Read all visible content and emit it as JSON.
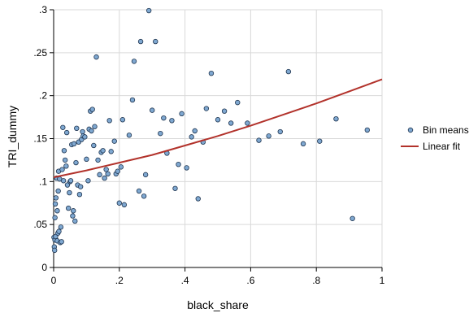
{
  "chart_data": {
    "type": "scatter",
    "xlabel": "black_share",
    "ylabel": "TRI_dummy",
    "xlim": [
      0,
      1
    ],
    "ylim": [
      0,
      0.3
    ],
    "x_ticks": [
      0,
      0.2,
      0.4,
      0.6,
      0.8,
      1
    ],
    "x_tick_labels": [
      "0",
      ".2",
      ".4",
      ".6",
      ".8",
      "1"
    ],
    "y_ticks": [
      0,
      0.05,
      0.1,
      0.15,
      0.2,
      0.25,
      0.3
    ],
    "y_tick_labels": [
      "0",
      ".05",
      ".1",
      ".15",
      ".2",
      ".25",
      ".3"
    ],
    "grid": true,
    "legend_position": "right",
    "colors": {
      "points": "#7fa8d1",
      "point_edge": "#1f3550",
      "fit": "#b2322b",
      "grid": "#d9d9d9"
    },
    "series": [
      {
        "name": "Bin means",
        "kind": "scatter",
        "points": [
          [
            0.001,
            0.035
          ],
          [
            0.002,
            0.024
          ],
          [
            0.003,
            0.02
          ],
          [
            0.004,
            0.032
          ],
          [
            0.004,
            0.058
          ],
          [
            0.005,
            0.074
          ],
          [
            0.006,
            0.036
          ],
          [
            0.007,
            0.081
          ],
          [
            0.009,
            0.104
          ],
          [
            0.011,
            0.031
          ],
          [
            0.011,
            0.066
          ],
          [
            0.013,
            0.04
          ],
          [
            0.014,
            0.089
          ],
          [
            0.015,
            0.112
          ],
          [
            0.016,
            0.042
          ],
          [
            0.018,
            0.103
          ],
          [
            0.02,
            0.029
          ],
          [
            0.022,
            0.047
          ],
          [
            0.024,
            0.03
          ],
          [
            0.026,
            0.114
          ],
          [
            0.028,
            0.163
          ],
          [
            0.03,
            0.101
          ],
          [
            0.032,
            0.136
          ],
          [
            0.035,
            0.125
          ],
          [
            0.038,
            0.118
          ],
          [
            0.04,
            0.157
          ],
          [
            0.042,
            0.096
          ],
          [
            0.045,
            0.069
          ],
          [
            0.048,
            0.087
          ],
          [
            0.05,
            0.1
          ],
          [
            0.052,
            0.101
          ],
          [
            0.055,
            0.143
          ],
          [
            0.058,
            0.06
          ],
          [
            0.06,
            0.066
          ],
          [
            0.062,
            0.144
          ],
          [
            0.065,
            0.054
          ],
          [
            0.068,
            0.122
          ],
          [
            0.07,
            0.162
          ],
          [
            0.073,
            0.096
          ],
          [
            0.076,
            0.146
          ],
          [
            0.079,
            0.085
          ],
          [
            0.082,
            0.094
          ],
          [
            0.085,
            0.149
          ],
          [
            0.088,
            0.158
          ],
          [
            0.09,
            0.153
          ],
          [
            0.095,
            0.152
          ],
          [
            0.1,
            0.126
          ],
          [
            0.105,
            0.101
          ],
          [
            0.108,
            0.161
          ],
          [
            0.112,
            0.182
          ],
          [
            0.115,
            0.159
          ],
          [
            0.118,
            0.184
          ],
          [
            0.122,
            0.142
          ],
          [
            0.125,
            0.164
          ],
          [
            0.13,
            0.245
          ],
          [
            0.135,
            0.125
          ],
          [
            0.14,
            0.108
          ],
          [
            0.145,
            0.134
          ],
          [
            0.15,
            0.136
          ],
          [
            0.155,
            0.104
          ],
          [
            0.16,
            0.114
          ],
          [
            0.165,
            0.109
          ],
          [
            0.17,
            0.171
          ],
          [
            0.175,
            0.135
          ],
          [
            0.185,
            0.147
          ],
          [
            0.19,
            0.109
          ],
          [
            0.195,
            0.112
          ],
          [
            0.2,
            0.075
          ],
          [
            0.205,
            0.117
          ],
          [
            0.21,
            0.172
          ],
          [
            0.215,
            0.073
          ],
          [
            0.23,
            0.154
          ],
          [
            0.24,
            0.195
          ],
          [
            0.245,
            0.24
          ],
          [
            0.26,
            0.089
          ],
          [
            0.265,
            0.263
          ],
          [
            0.275,
            0.083
          ],
          [
            0.28,
            0.108
          ],
          [
            0.29,
            0.299
          ],
          [
            0.3,
            0.183
          ],
          [
            0.31,
            0.263
          ],
          [
            0.325,
            0.156
          ],
          [
            0.335,
            0.174
          ],
          [
            0.345,
            0.133
          ],
          [
            0.36,
            0.171
          ],
          [
            0.37,
            0.092
          ],
          [
            0.38,
            0.12
          ],
          [
            0.39,
            0.179
          ],
          [
            0.405,
            0.116
          ],
          [
            0.42,
            0.152
          ],
          [
            0.43,
            0.159
          ],
          [
            0.44,
            0.08
          ],
          [
            0.455,
            0.146
          ],
          [
            0.465,
            0.185
          ],
          [
            0.48,
            0.226
          ],
          [
            0.5,
            0.172
          ],
          [
            0.52,
            0.182
          ],
          [
            0.54,
            0.168
          ],
          [
            0.56,
            0.192
          ],
          [
            0.59,
            0.168
          ],
          [
            0.625,
            0.148
          ],
          [
            0.655,
            0.153
          ],
          [
            0.69,
            0.158
          ],
          [
            0.715,
            0.228
          ],
          [
            0.76,
            0.144
          ],
          [
            0.81,
            0.147
          ],
          [
            0.86,
            0.173
          ],
          [
            0.91,
            0.057
          ],
          [
            0.955,
            0.16
          ]
        ]
      },
      {
        "name": "Linear fit",
        "kind": "line",
        "points": [
          [
            0,
            0.105
          ],
          [
            0.1,
            0.113
          ],
          [
            0.2,
            0.122
          ],
          [
            0.3,
            0.131
          ],
          [
            0.4,
            0.142
          ],
          [
            0.5,
            0.153
          ],
          [
            0.6,
            0.165
          ],
          [
            0.7,
            0.178
          ],
          [
            0.8,
            0.191
          ],
          [
            0.9,
            0.205
          ],
          [
            1,
            0.219
          ]
        ]
      }
    ]
  }
}
